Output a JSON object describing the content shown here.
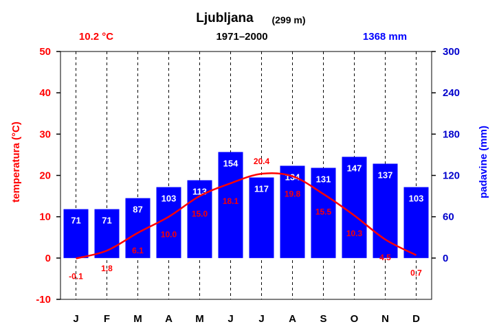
{
  "header": {
    "title": "Ljubljana",
    "elevation": "(299 m)",
    "avg_temperature": "10.2 °C",
    "period": "1971–2000",
    "total_precipitation": "1368 mm"
  },
  "chart_data": {
    "type": "bar",
    "categories": [
      "J",
      "F",
      "M",
      "A",
      "M",
      "J",
      "J",
      "A",
      "S",
      "O",
      "N",
      "D"
    ],
    "series": [
      {
        "name": "padavine (mm)",
        "type": "bar",
        "axis": "right",
        "values": [
          71,
          71,
          87,
          103,
          113,
          154,
          117,
          134,
          131,
          147,
          137,
          103
        ],
        "labels": [
          "71",
          "71",
          "87",
          "103",
          "113",
          "154",
          "117",
          "134",
          "131",
          "147",
          "137",
          "103"
        ]
      },
      {
        "name": "temperatura (°C)",
        "type": "line",
        "axis": "left",
        "values": [
          -0.1,
          1.8,
          6.1,
          10.0,
          15.0,
          18.1,
          20.4,
          19.8,
          15.5,
          10.3,
          4.5,
          0.7
        ],
        "labels": [
          "-0.1",
          "1.8",
          "6.1",
          "10.0",
          "15.0",
          "18.1",
          "20.4",
          "19.8",
          "15.5",
          "10.3",
          "4.5",
          "0.7"
        ]
      }
    ],
    "ylabel_left": "temperatura (°C)",
    "ylabel_right": "padavine (mm)",
    "ylim_left": [
      -10,
      50
    ],
    "ylim_right": [
      -60,
      300
    ],
    "yticks_left": [
      "50",
      "40",
      "30",
      "20",
      "10",
      "0",
      "-10"
    ],
    "yticks_left_values": [
      50,
      40,
      30,
      20,
      10,
      0,
      -10
    ],
    "yticks_right": [
      "300",
      "240",
      "180",
      "120",
      "60",
      "0"
    ],
    "yticks_right_values": [
      300,
      240,
      180,
      120,
      60,
      0
    ],
    "grid": "vertical-dashed",
    "colors": {
      "temperature": "#ff0000",
      "precipitation": "#0000ff",
      "labels_on_bars": "#ffffff"
    }
  }
}
